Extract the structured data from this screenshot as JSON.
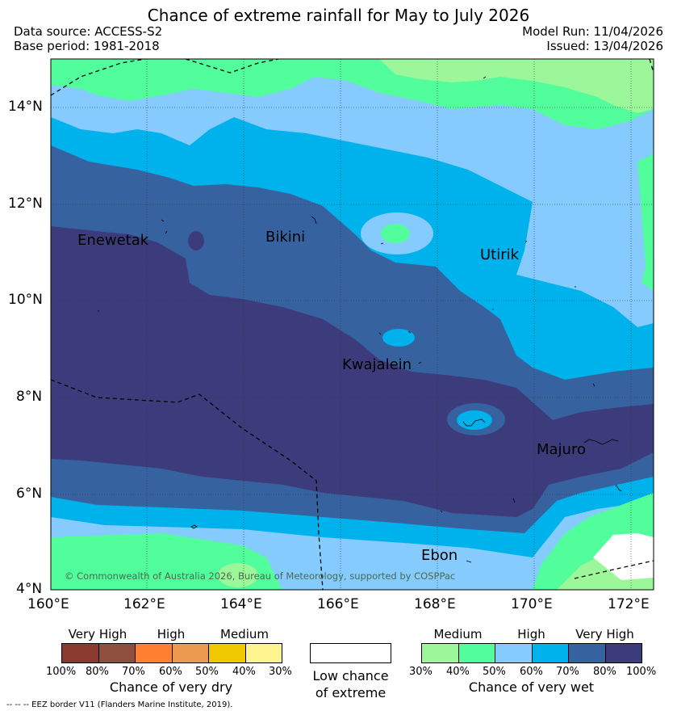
{
  "title": "Chance of extreme rainfall for May to July 2026",
  "meta": {
    "data_source": "Data source: ACCESS-S2",
    "base_period": "Base period: 1981-2018",
    "model_run": "Model Run: 11/04/2026",
    "issued": "Issued: 13/04/2026"
  },
  "axes": {
    "lat_labels": [
      "14°N",
      "12°N",
      "10°N",
      "8°N",
      "6°N",
      "4°N"
    ],
    "lon_labels": [
      "160°E",
      "162°E",
      "164°E",
      "166°E",
      "168°E",
      "170°E",
      "172°E"
    ]
  },
  "places": {
    "enewetak": "Enewetak",
    "bikini": "Bikini",
    "utirik": "Utirik",
    "kwajalein": "Kwajalein",
    "majuro": "Majuro",
    "ebon": "Ebon"
  },
  "copyright": "© Commonwealth of Australia 2026, Bureau of Meteorology, supported by COSPPac",
  "legend": {
    "dry": {
      "categories": [
        "Very High",
        "High",
        "Medium"
      ],
      "colors": [
        "#8b3a30",
        "#8e4f3c",
        "#ff8030",
        "#eb9a50",
        "#f0c800",
        "#fff590"
      ],
      "ticks": [
        "100%",
        "80%",
        "70%",
        "60%",
        "50%",
        "40%",
        "30%"
      ],
      "caption": "Chance of very dry"
    },
    "low": {
      "caption_line1": "Low chance",
      "caption_line2": "of extreme",
      "color": "#ffffff"
    },
    "wet": {
      "categories": [
        "Medium",
        "High",
        "Very High"
      ],
      "colors": [
        "#9cf79a",
        "#52fd9c",
        "#85cbfd",
        "#00b2ec",
        "#3663a0",
        "#3c3c7c"
      ],
      "ticks": [
        "30%",
        "40%",
        "50%",
        "60%",
        "70%",
        "80%",
        "100%"
      ],
      "caption": "Chance of very wet"
    }
  },
  "eez_note": "-- -- -- EEZ border V11 (Flanders Marine Institute, 2019)."
}
